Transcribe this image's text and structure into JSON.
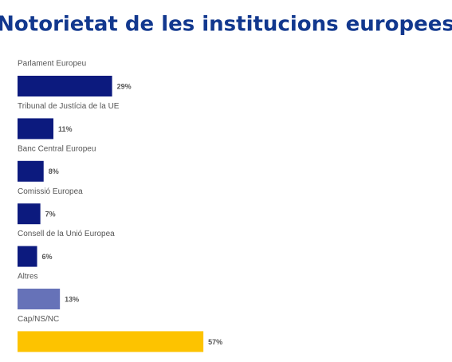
{
  "chart_data": {
    "type": "bar",
    "orientation": "horizontal",
    "title": "Notorietat de les institucions europees",
    "categories": [
      "Parlament Europeu",
      "Tribunal de Justícia de la UE",
      "Banc Central Europeu",
      "Comissió Europea",
      "Consell de la Unió Europea",
      "Altres",
      "Cap/NS/NC"
    ],
    "values": [
      29,
      11,
      8,
      7,
      6,
      13,
      57
    ],
    "value_labels": [
      "29%",
      "11%",
      "8%",
      "7%",
      "6%",
      "13%",
      "57%"
    ],
    "colors": [
      "#0c1a7e",
      "#0c1a7e",
      "#0c1a7e",
      "#0c1a7e",
      "#0c1a7e",
      "#6672b8",
      "#fdc300"
    ]
  }
}
